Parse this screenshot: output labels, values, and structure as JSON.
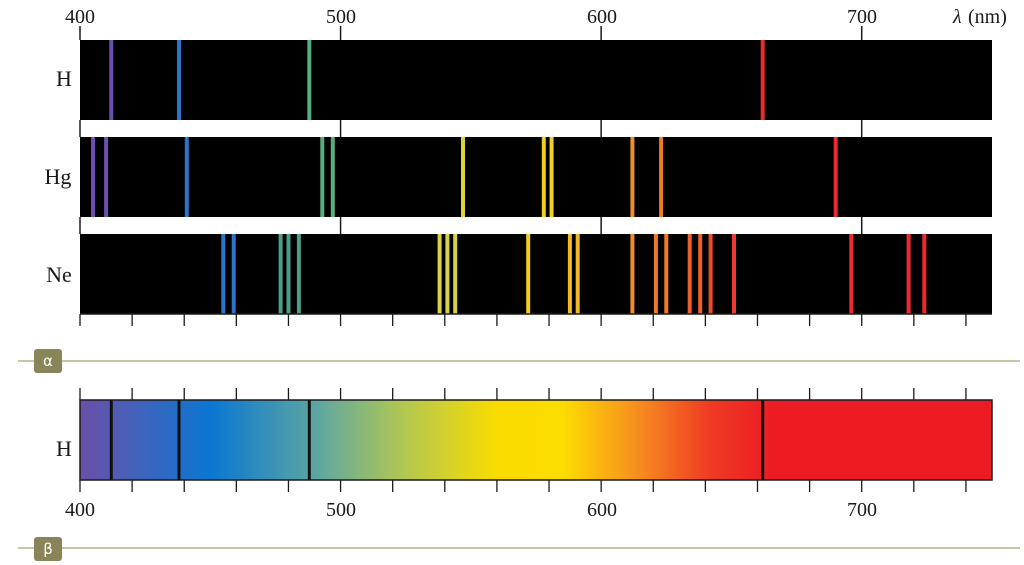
{
  "wavelength_axis": {
    "min": 400,
    "max": 750,
    "top_ticks": [
      "400",
      "500",
      "600",
      "700"
    ],
    "bottom_ticks": [
      "400",
      "500",
      "600",
      "700"
    ],
    "unit_symbol": "λ",
    "unit_label": "(nm)",
    "minor_tick_step": 20
  },
  "emission_spectra": [
    {
      "element": "H",
      "lines": [
        {
          "nm": 412,
          "color": "#6a4fb0"
        },
        {
          "nm": 438,
          "color": "#2a74c9"
        },
        {
          "nm": 488,
          "color": "#58ad7e"
        },
        {
          "nm": 662,
          "color": "#ec2a30"
        }
      ]
    },
    {
      "element": "Hg",
      "lines": [
        {
          "nm": 405,
          "color": "#6a4fb0"
        },
        {
          "nm": 410,
          "color": "#6a4fb0"
        },
        {
          "nm": 441,
          "color": "#2a74c9"
        },
        {
          "nm": 493,
          "color": "#58ad7e"
        },
        {
          "nm": 497,
          "color": "#58ad7e"
        },
        {
          "nm": 547,
          "color": "#e0d23a"
        },
        {
          "nm": 578,
          "color": "#f3cf1e"
        },
        {
          "nm": 581,
          "color": "#f3cf1e"
        },
        {
          "nm": 612,
          "color": "#f08f2a"
        },
        {
          "nm": 623,
          "color": "#f07a2a"
        },
        {
          "nm": 690,
          "color": "#ec2a30"
        }
      ]
    },
    {
      "element": "Ne",
      "lines": [
        {
          "nm": 455,
          "color": "#2a74c9"
        },
        {
          "nm": 459,
          "color": "#2a74c9"
        },
        {
          "nm": 477,
          "color": "#4a9e8a"
        },
        {
          "nm": 480,
          "color": "#4a9e8a"
        },
        {
          "nm": 484,
          "color": "#4a9e8a"
        },
        {
          "nm": 538,
          "color": "#d8d24a"
        },
        {
          "nm": 541,
          "color": "#d8d24a"
        },
        {
          "nm": 544,
          "color": "#d8d24a"
        },
        {
          "nm": 572,
          "color": "#f3cf1e"
        },
        {
          "nm": 588,
          "color": "#f2b822"
        },
        {
          "nm": 591,
          "color": "#f2b822"
        },
        {
          "nm": 612,
          "color": "#f08f2a"
        },
        {
          "nm": 621,
          "color": "#f07a2a"
        },
        {
          "nm": 625,
          "color": "#f07a2a"
        },
        {
          "nm": 634,
          "color": "#f0602a"
        },
        {
          "nm": 638,
          "color": "#f0602a"
        },
        {
          "nm": 642,
          "color": "#ee4a2a"
        },
        {
          "nm": 651,
          "color": "#ec3a2e"
        },
        {
          "nm": 696,
          "color": "#ec2a30"
        },
        {
          "nm": 718,
          "color": "#ec2a30"
        },
        {
          "nm": 724,
          "color": "#ec2a30"
        }
      ]
    }
  ],
  "absorption_spectrum": {
    "element": "H",
    "lines_nm": [
      412,
      438,
      488,
      662
    ],
    "gradient_stops": [
      {
        "nm": 400,
        "color": "#6b4fa8"
      },
      {
        "nm": 418,
        "color": "#4a60b8"
      },
      {
        "nm": 450,
        "color": "#0a76d2"
      },
      {
        "nm": 492,
        "color": "#5fa8a0"
      },
      {
        "nm": 525,
        "color": "#b4c850"
      },
      {
        "nm": 560,
        "color": "#fadc00"
      },
      {
        "nm": 585,
        "color": "#fddd00"
      },
      {
        "nm": 612,
        "color": "#f7931e"
      },
      {
        "nm": 642,
        "color": "#ef3a24"
      },
      {
        "nm": 665,
        "color": "#ed1c24"
      },
      {
        "nm": 750,
        "color": "#ed1c24"
      }
    ]
  },
  "sections": [
    {
      "label": "α"
    },
    {
      "label": "β"
    }
  ],
  "colors": {
    "band_background": "#000000",
    "section_badge": "#8a8558",
    "section_rule": "#c9c6a3",
    "axis": "#1a1a1a"
  }
}
